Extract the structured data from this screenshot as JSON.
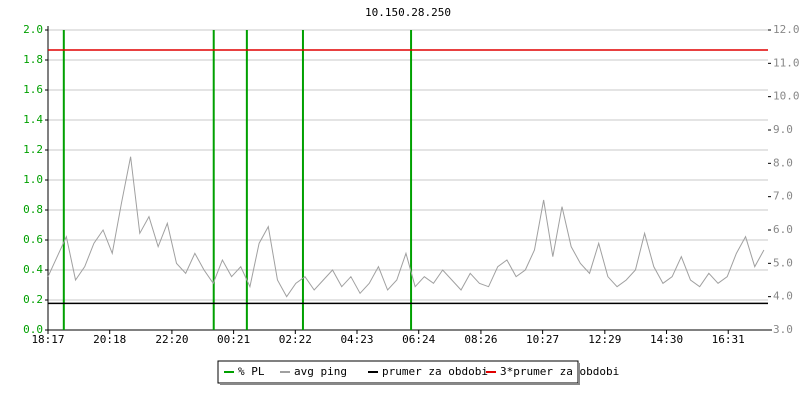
{
  "chart_data": {
    "type": "line",
    "title": "10.150.28.250",
    "xlim": [
      0,
      1412
    ],
    "xticks": [
      {
        "value": 0,
        "label": "18:17"
      },
      {
        "value": 121,
        "label": "20:18"
      },
      {
        "value": 243,
        "label": "22:20"
      },
      {
        "value": 364,
        "label": "00:21"
      },
      {
        "value": 485,
        "label": "02:22"
      },
      {
        "value": 606,
        "label": "04:23"
      },
      {
        "value": 727,
        "label": "06:24"
      },
      {
        "value": 849,
        "label": "08:26"
      },
      {
        "value": 970,
        "label": "10:27"
      },
      {
        "value": 1092,
        "label": "12:29"
      },
      {
        "value": 1213,
        "label": "14:30"
      },
      {
        "value": 1334,
        "label": "16:31"
      }
    ],
    "ylim": [
      0,
      2
    ],
    "yticks": [
      {
        "value": 0,
        "label": "0.0"
      },
      0.2,
      0.4,
      0.6,
      0.8,
      {
        "value": 1,
        "label": "1.0"
      },
      1.2,
      1.4,
      1.6,
      1.8,
      {
        "value": 2,
        "label": "2.0"
      }
    ],
    "y2lim": [
      3,
      12
    ],
    "y2ticks": [
      {
        "value": 3,
        "label": "3.0"
      },
      {
        "value": 4,
        "label": "4.0"
      },
      {
        "value": 5,
        "label": "5.0"
      },
      {
        "value": 6,
        "label": "6.0"
      },
      {
        "value": 7,
        "label": "7.0"
      },
      {
        "value": 8,
        "label": "8.0"
      },
      {
        "value": 9,
        "label": "9.0"
      },
      {
        "value": 10,
        "label": "10.0"
      },
      {
        "value": 11,
        "label": "11.0"
      },
      {
        "value": 12,
        "label": "12.0"
      }
    ],
    "grid": true,
    "legend": "bottom",
    "series": [
      {
        "name": "% PL",
        "color": "#00a000",
        "style": "spikes",
        "x": [
          31,
          325,
          390,
          500,
          712
        ],
        "values": [
          2,
          2,
          2,
          2,
          2
        ]
      },
      {
        "name": "avg ping",
        "color": "#a0a0a0",
        "axis": "y2",
        "x": [
          0,
          18,
          36,
          54,
          72,
          90,
          108,
          126,
          144,
          162,
          180,
          198,
          216,
          234,
          252,
          270,
          288,
          306,
          324,
          342,
          360,
          378,
          396,
          414,
          432,
          450,
          468,
          486,
          504,
          522,
          540,
          558,
          576,
          594,
          612,
          630,
          648,
          666,
          684,
          702,
          720,
          738,
          756,
          774,
          792,
          810,
          828,
          846,
          864,
          882,
          900,
          918,
          936,
          954,
          972,
          990,
          1008,
          1026,
          1044,
          1062,
          1080,
          1098,
          1116,
          1134,
          1152,
          1170,
          1188,
          1206,
          1224,
          1242,
          1260,
          1278,
          1296,
          1314,
          1332,
          1350,
          1368,
          1386,
          1404
        ],
        "values": [
          4.6,
          5.2,
          5.8,
          4.5,
          4.9,
          5.6,
          6.0,
          5.3,
          6.8,
          8.2,
          5.9,
          6.4,
          5.5,
          6.2,
          5.0,
          4.7,
          5.3,
          4.8,
          4.4,
          5.1,
          4.6,
          4.9,
          4.3,
          5.6,
          6.1,
          4.5,
          4.0,
          4.4,
          4.6,
          4.2,
          4.5,
          4.8,
          4.3,
          4.6,
          4.1,
          4.4,
          4.9,
          4.2,
          4.5,
          5.3,
          4.3,
          4.6,
          4.4,
          4.8,
          4.5,
          4.2,
          4.7,
          4.4,
          4.3,
          4.9,
          5.1,
          4.6,
          4.8,
          5.4,
          6.9,
          5.2,
          6.7,
          5.5,
          5.0,
          4.7,
          5.6,
          4.6,
          4.3,
          4.5,
          4.8,
          5.9,
          4.9,
          4.4,
          4.6,
          5.2,
          4.5,
          4.3,
          4.7,
          4.4,
          4.6,
          5.3,
          5.8,
          4.9,
          5.4
        ]
      },
      {
        "name": "prumer za obdobi",
        "color": "#000000",
        "axis": "y2",
        "x": [
          0,
          1412
        ],
        "values": [
          3.8,
          3.8
        ]
      },
      {
        "name": "3*prumer za obdobi",
        "color": "#e00000",
        "axis": "y2",
        "x": [
          0,
          1412
        ],
        "values": [
          11.4,
          11.4
        ]
      }
    ]
  }
}
